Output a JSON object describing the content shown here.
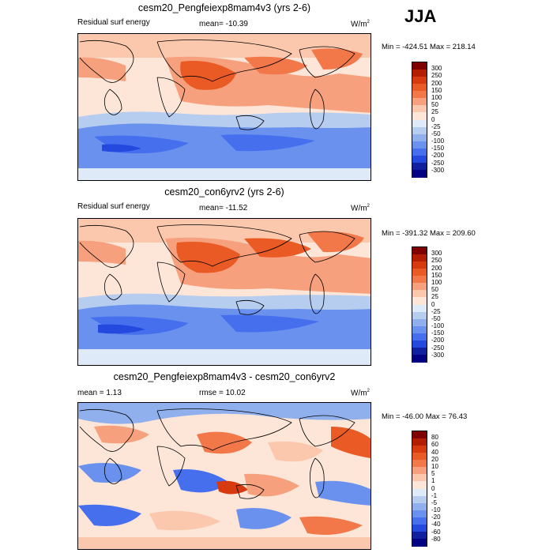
{
  "season": "JJA",
  "panels": [
    {
      "title": "cesm20_Pengfeiexp8mam4v3 (yrs 2-6)",
      "left_label": "Residual surf energy",
      "center_label": "mean= -10.39",
      "units": "W/m",
      "units_sup": "2",
      "minmax": "Min = -424.51 Max = 218.14",
      "levels": [
        "300",
        "250",
        "200",
        "150",
        "100",
        "50",
        "25",
        "0",
        "-25",
        "-50",
        "-100",
        "-150",
        "-200",
        "-250",
        "-300"
      ],
      "colors": [
        "#7f0000",
        "#b41e00",
        "#d73a0f",
        "#ea5a24",
        "#f2784a",
        "#f7a07d",
        "#fbc8ad",
        "#fde6d8",
        "#deeaf7",
        "#b6cdef",
        "#8fb0ec",
        "#6a91ee",
        "#466fed",
        "#2449df",
        "#10209f",
        "#000080"
      ]
    },
    {
      "title": "cesm20_con6yrv2 (yrs 2-6)",
      "left_label": "Residual surf energy",
      "center_label": "mean= -11.52",
      "units": "W/m",
      "units_sup": "2",
      "minmax": "Min = -391.32 Max = 209.60",
      "levels": [
        "300",
        "250",
        "200",
        "150",
        "100",
        "50",
        "25",
        "0",
        "-25",
        "-50",
        "-100",
        "-150",
        "-200",
        "-250",
        "-300"
      ],
      "colors": [
        "#7f0000",
        "#b41e00",
        "#d73a0f",
        "#ea5a24",
        "#f2784a",
        "#f7a07d",
        "#fbc8ad",
        "#fde6d8",
        "#deeaf7",
        "#b6cdef",
        "#8fb0ec",
        "#6a91ee",
        "#466fed",
        "#2449df",
        "#10209f",
        "#000080"
      ]
    },
    {
      "title": "cesm20_Pengfeiexp8mam4v3 - cesm20_con6yrv2",
      "left_label": "mean =   1.13",
      "center_label": "rmse =  10.02",
      "units": "W/m",
      "units_sup": "2",
      "minmax": "Min = -46.00 Max =  76.43",
      "levels": [
        "80",
        "60",
        "40",
        "20",
        "10",
        "5",
        "1",
        "0",
        "-1",
        "-5",
        "-10",
        "-20",
        "-40",
        "-60",
        "-80"
      ],
      "colors": [
        "#7f0000",
        "#b41e00",
        "#d73a0f",
        "#ea5a24",
        "#f2784a",
        "#f7a07d",
        "#fbc8ad",
        "#fde6d8",
        "#deeaf7",
        "#b6cdef",
        "#8fb0ec",
        "#6a91ee",
        "#466fed",
        "#2449df",
        "#10209f",
        "#000080"
      ]
    }
  ]
}
